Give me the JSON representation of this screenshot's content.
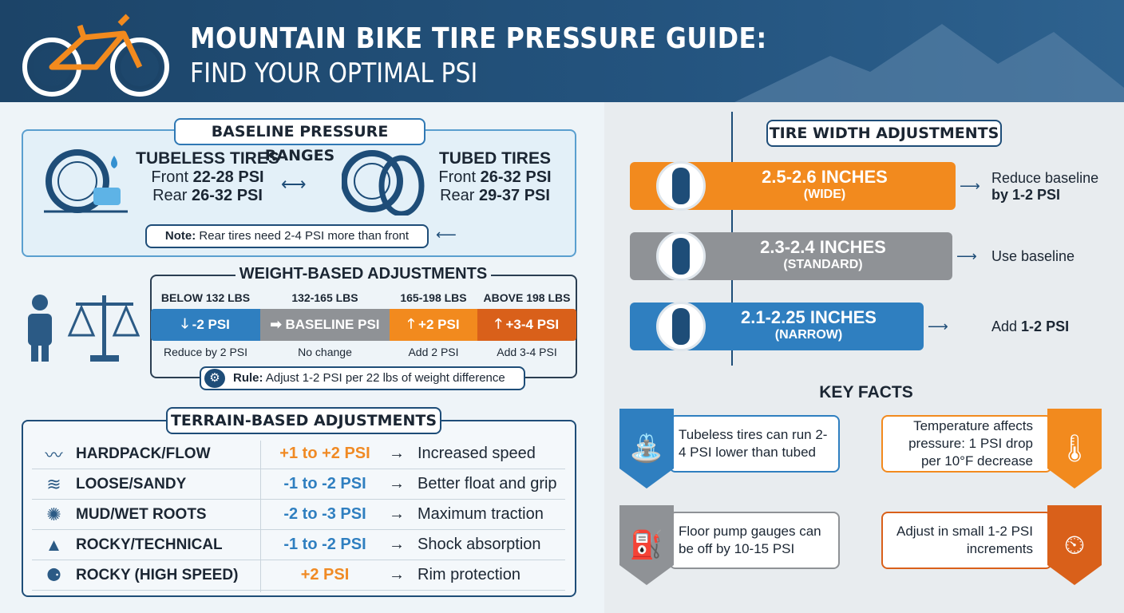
{
  "header": {
    "title": "MOUNTAIN BIKE TIRE PRESSURE GUIDE:",
    "subtitle": "FIND YOUR OPTIMAL PSI"
  },
  "baseline": {
    "title": "BASELINE PRESSURE RANGES",
    "tubeless": {
      "title": "TUBELESS TIRES",
      "front_label": "Front",
      "front": "22-28 PSI",
      "rear_label": "Rear",
      "rear": "26-32 PSI"
    },
    "tubed": {
      "title": "TUBED TIRES",
      "front_label": "Front",
      "front": "26-32 PSI",
      "rear_label": "Rear",
      "rear": "29-37 PSI"
    },
    "note_label": "Note:",
    "note": "Rear tires need 2-4 PSI more than front"
  },
  "weight": {
    "title": "WEIGHT-BASED ADJUSTMENTS",
    "items": [
      {
        "range": "BELOW 132 LBS",
        "value": "-2 PSI",
        "desc": "Reduce by 2 PSI",
        "color": "#2f7fc0",
        "icon": "arrow-down"
      },
      {
        "range": "132-165 LBS",
        "value": "BASELINE PSI",
        "desc": "No change",
        "color": "#8f9296",
        "icon": "arrow-right"
      },
      {
        "range": "165-198 LBS",
        "value": "+2 PSI",
        "desc": "Add 2 PSI",
        "color": "#f28a1e",
        "icon": "arrow-up"
      },
      {
        "range": "ABOVE 198 LBS",
        "value": "+3-4 PSI",
        "desc": "Add 3-4 PSI",
        "color": "#d9601a",
        "icon": "arrow-up"
      }
    ],
    "rule_label": "Rule:",
    "rule": "Adjust 1-2 PSI per 22 lbs of weight difference"
  },
  "terrain": {
    "title": "TERRAIN-BASED ADJUSTMENTS",
    "rows": [
      {
        "name": "HARDPACK/FLOW",
        "psi": "+1 to +2 PSI",
        "psi_color": "#f08a24",
        "effect": "Increased speed"
      },
      {
        "name": "LOOSE/SANDY",
        "psi": "-1 to -2 PSI",
        "psi_color": "#2f7fc0",
        "effect": "Better float and grip"
      },
      {
        "name": "MUD/WET ROOTS",
        "psi": "-2 to -3 PSI",
        "psi_color": "#2f7fc0",
        "effect": "Maximum traction"
      },
      {
        "name": "ROCKY/TECHNICAL",
        "psi": "-1 to -2 PSI",
        "psi_color": "#2f7fc0",
        "effect": "Shock absorption"
      },
      {
        "name": "ROCKY (HIGH SPEED)",
        "psi": "+2 PSI",
        "psi_color": "#f08a24",
        "effect": "Rim protection"
      }
    ],
    "arrow": "→"
  },
  "width": {
    "title": "TIRE WIDTH ADJUSTMENTS",
    "rows": [
      {
        "size": "2.5-2.6 INCHES",
        "label": "(WIDE)",
        "color": "#f28a1e",
        "note": "Reduce baseline",
        "note_bold": "by 1-2 PSI"
      },
      {
        "size": "2.3-2.4 INCHES",
        "label": "(STANDARD)",
        "color": "#8f9296",
        "note": "Use baseline",
        "note_bold": ""
      },
      {
        "size": "2.1-2.25 INCHES",
        "label": "(NARROW)",
        "color": "#2f7fc0",
        "note": "Add",
        "note_bold": "1-2 PSI"
      }
    ]
  },
  "facts": {
    "title": "KEY FACTS",
    "items": [
      {
        "text": "Tubeless tires can run 2-4 PSI lower than tubed",
        "color": "#2f7fc0",
        "icon": "valve"
      },
      {
        "text": "Temperature affects pressure: 1 PSI drop per 10°F decrease",
        "color": "#f28a1e",
        "icon": "thermometer-snowflake"
      },
      {
        "text": "Floor pump gauges can be off by 10-15 PSI",
        "color": "#8f9296",
        "icon": "floor-pump"
      },
      {
        "text": "Adjust in small 1-2 PSI increments",
        "color": "#d9601a",
        "icon": "gauge-hand"
      }
    ]
  }
}
